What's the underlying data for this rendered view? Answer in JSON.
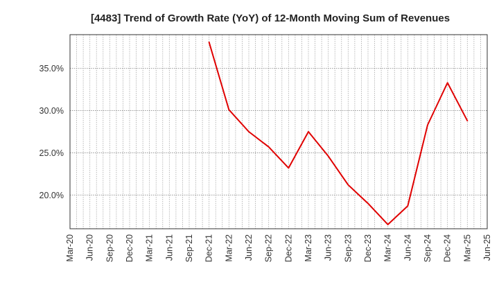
{
  "chart_data": {
    "type": "line",
    "title": "[4483]  Trend of Growth Rate (YoY) of 12-Month Moving Sum of Revenues",
    "xlabel": "",
    "ylabel": "",
    "x_tick_labels": [
      "Mar-20",
      "Jun-20",
      "Sep-20",
      "Dec-20",
      "Mar-21",
      "Jun-21",
      "Sep-21",
      "Dec-21",
      "Mar-22",
      "Jun-22",
      "Sep-22",
      "Dec-22",
      "Mar-23",
      "Jun-23",
      "Sep-23",
      "Dec-23",
      "Mar-24",
      "Jun-24",
      "Sep-24",
      "Dec-24",
      "Mar-25",
      "Jun-25"
    ],
    "y_ticks": [
      20.0,
      25.0,
      30.0,
      35.0
    ],
    "y_tick_labels": [
      "20.0%",
      "25.0%",
      "30.0%",
      "35.0%"
    ],
    "ylim": [
      16.0,
      39.0
    ],
    "grid": true,
    "series": [
      {
        "color": "#e00000",
        "x": [
          "Dec-21",
          "Mar-22",
          "Jun-22",
          "Sep-22",
          "Dec-22",
          "Mar-23",
          "Jun-23",
          "Sep-23",
          "Dec-23",
          "Mar-24",
          "Jun-24",
          "Sep-24",
          "Dec-24",
          "Mar-25"
        ],
        "values": [
          38.1,
          30.1,
          27.5,
          25.7,
          23.2,
          27.5,
          24.6,
          21.2,
          19.0,
          16.5,
          18.7,
          28.3,
          33.3,
          28.8
        ]
      }
    ]
  }
}
